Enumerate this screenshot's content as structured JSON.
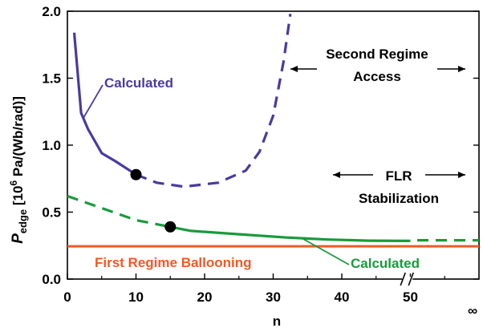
{
  "chart_data": {
    "type": "line",
    "title": "",
    "xlabel": "n",
    "ylabel_main": "P",
    "ylabel_sub": "edge",
    "ylabel_rest1": " [10",
    "ylabel_sup": "6",
    "ylabel_rest2": " Pa/(Wb/rad)]",
    "xlim": [
      0,
      60
    ],
    "ylim": [
      0,
      2.0
    ],
    "x_ticks": [
      {
        "v": 0,
        "label": "0"
      },
      {
        "v": 10,
        "label": "10"
      },
      {
        "v": 20,
        "label": "20"
      },
      {
        "v": 30,
        "label": "30"
      },
      {
        "v": 40,
        "label": "40"
      },
      {
        "v": 50,
        "label": "50"
      }
    ],
    "x_infinity_label": "∞",
    "y_ticks": [
      {
        "v": 0.0,
        "label": "0.0"
      },
      {
        "v": 0.5,
        "label": "0.5"
      },
      {
        "v": 1.0,
        "label": "1.0"
      },
      {
        "v": 1.5,
        "label": "1.5"
      },
      {
        "v": 2.0,
        "label": "2.0"
      }
    ],
    "grid": false,
    "colors": {
      "purple": "#4a3aa0",
      "green": "#1a9a3c",
      "orange": "#ef5a24"
    },
    "series": [
      {
        "name": "Calculated",
        "color": "purple",
        "style": "solid",
        "points": [
          [
            1,
            1.84
          ],
          [
            2,
            1.24
          ],
          [
            3,
            1.12
          ],
          [
            5,
            0.94
          ],
          [
            7,
            0.88
          ],
          [
            10,
            0.78
          ]
        ]
      },
      {
        "color": "purple",
        "style": "dashed",
        "points": [
          [
            10,
            0.78
          ],
          [
            13,
            0.72
          ],
          [
            17,
            0.69
          ],
          [
            22,
            0.72
          ],
          [
            26,
            0.81
          ],
          [
            28,
            0.95
          ],
          [
            30,
            1.22
          ],
          [
            31.5,
            1.62
          ],
          [
            32.5,
            1.98
          ]
        ]
      },
      {
        "color": "green",
        "style": "dashed",
        "points": [
          [
            0,
            0.62
          ],
          [
            5,
            0.53
          ],
          [
            10,
            0.44
          ],
          [
            15,
            0.39
          ]
        ]
      },
      {
        "name": "Calculated",
        "color": "green",
        "style": "solid",
        "points": [
          [
            15,
            0.39
          ],
          [
            18,
            0.36
          ],
          [
            25,
            0.335
          ],
          [
            32,
            0.31
          ],
          [
            38,
            0.295
          ],
          [
            44,
            0.287
          ],
          [
            50,
            0.285
          ]
        ]
      },
      {
        "color": "green",
        "style": "dashed",
        "points": [
          [
            51,
            0.29
          ],
          [
            60,
            0.29
          ]
        ]
      },
      {
        "name": "First Regime Ballooning",
        "color": "orange",
        "style": "solid",
        "points": [
          [
            0,
            0.245
          ],
          [
            60,
            0.245
          ]
        ]
      }
    ],
    "markers": [
      {
        "x": 10,
        "y": 0.78
      },
      {
        "x": 15,
        "y": 0.39
      }
    ],
    "annotations": {
      "calc_purple": "Calculated",
      "calc_green": "Calculated",
      "first_regime": "First Regime Ballooning",
      "second_regime_line1": "Second Regime",
      "second_regime_line2": "Access",
      "flr_line1": "FLR",
      "flr_line2": "Stabilization"
    }
  }
}
